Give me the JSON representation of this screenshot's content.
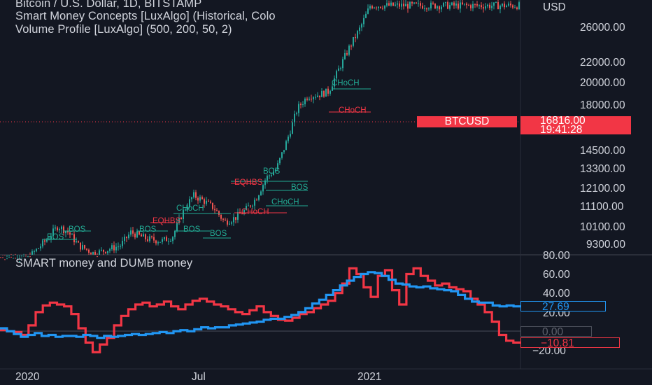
{
  "header": {
    "symbol_line": "Bitcoin / U.S. Dollar, 1D, BITSTAMP",
    "indicator_1": "Smart Money Concepts [LuxAlgo] (Historical, Colo",
    "indicator_2": "Volume Profile [LuxAlgo] (500, 200, 50, 2)",
    "pane2_title": "SMART money and DUMB money"
  },
  "price_pane": {
    "currency_label": "USD",
    "price_ticks": [
      "26000.00",
      "22000.00",
      "20000.00",
      "18000.00",
      "14500.00",
      "13300.00",
      "12100.00",
      "11100.00",
      "10100.00",
      "9300.00"
    ],
    "symbol_tag": "BTCUSD",
    "last_price": "16816.00",
    "countdown": "19:41:28",
    "tag_color": "#f23645",
    "smc_labels": [
      {
        "text": "CHoCH",
        "color": "#22ab94"
      },
      {
        "text": "CHoCH",
        "color": "#f23645"
      },
      {
        "text": "BOS",
        "color": "#22ab94"
      },
      {
        "text": "EQHBS",
        "color": "#f23645"
      },
      {
        "text": "BOS",
        "color": "#22ab94"
      },
      {
        "text": "CHoCH",
        "color": "#22ab94"
      },
      {
        "text": "CHoCH",
        "color": "#22ab94"
      },
      {
        "text": "CHoCH",
        "color": "#f23645"
      },
      {
        "text": "EQHBS",
        "color": "#f23645"
      },
      {
        "text": "BOS",
        "color": "#22ab94"
      },
      {
        "text": "BOS",
        "color": "#22ab94"
      },
      {
        "text": "BOS",
        "color": "#22ab94"
      },
      {
        "text": "BOS",
        "color": "#22ab94"
      },
      {
        "text": "BOS",
        "color": "#22ab94"
      }
    ]
  },
  "indicator_pane": {
    "ticks": [
      "80.00",
      "60.00",
      "40.00",
      "20.00",
      "0.00",
      "−20.00"
    ],
    "smart_value": "27.69",
    "dumb_value": "−10.81",
    "zero_value": "0.00",
    "smart_color": "#2196f3",
    "dumb_color": "#f23645"
  },
  "time_axis": {
    "labels": [
      "2020",
      "Jul",
      "2021"
    ]
  },
  "chart_data": [
    {
      "type": "line",
      "title": "Bitcoin / U.S. Dollar, 1D, BITSTAMP",
      "ylabel": "USD",
      "ylim": [
        8900,
        29000
      ],
      "x_labels": [
        "2020",
        "Jul",
        "2021"
      ],
      "series": [
        {
          "name": "BTCUSD",
          "points": [
            [
              0.0,
              8800
            ],
            [
              0.05,
              8700
            ],
            [
              0.09,
              9600
            ],
            [
              0.11,
              10200
            ],
            [
              0.13,
              9900
            ],
            [
              0.15,
              9300
            ],
            [
              0.18,
              8950
            ],
            [
              0.23,
              9300
            ],
            [
              0.25,
              9900
            ],
            [
              0.28,
              9600
            ],
            [
              0.31,
              9500
            ],
            [
              0.33,
              9700
            ],
            [
              0.35,
              10900
            ],
            [
              0.37,
              11800
            ],
            [
              0.39,
              11500
            ],
            [
              0.41,
              11100
            ],
            [
              0.43,
              10400
            ],
            [
              0.45,
              10600
            ],
            [
              0.47,
              11000
            ],
            [
              0.49,
              11600
            ],
            [
              0.51,
              12800
            ],
            [
              0.53,
              13400
            ],
            [
              0.55,
              15300
            ],
            [
              0.57,
              17800
            ],
            [
              0.59,
              18900
            ],
            [
              0.61,
              19000
            ],
            [
              0.63,
              19300
            ],
            [
              0.65,
              21500
            ],
            [
              0.67,
              23800
            ],
            [
              0.69,
              26000
            ],
            [
              0.71,
              29000
            ],
            [
              0.73,
              29000
            ]
          ]
        }
      ]
    },
    {
      "type": "line",
      "title": "SMART money and DUMB money",
      "ylim": [
        -25,
        80
      ],
      "x_labels": [
        "2020",
        "Jul",
        "2021"
      ],
      "series": [
        {
          "name": "",
          "values": [
            5,
            2,
            -1,
            -4,
            -2,
            0,
            -3,
            -2,
            -4,
            -3,
            -3,
            -4,
            -2,
            -3,
            -5,
            -3,
            -4,
            -3,
            -2,
            -1,
            -2,
            -1,
            0,
            1,
            0,
            2,
            3,
            2,
            4,
            6,
            5,
            6,
            6,
            8,
            9,
            10,
            11,
            12,
            14,
            15,
            15,
            17,
            19,
            22,
            26,
            31,
            35,
            40,
            45,
            50,
            55,
            59,
            62,
            64,
            63,
            60,
            56,
            52,
            51,
            49,
            48,
            49,
            47,
            46,
            45,
            44,
            40,
            36,
            33,
            32,
            32,
            29,
            28,
            29,
            28,
            28
          ],
          "last": 27.69
        },
        {
          "name": "",
          "values": [
            3,
            2,
            1,
            -2,
            8,
            22,
            29,
            32,
            30,
            28,
            20,
            5,
            -10,
            -20,
            -12,
            -5,
            8,
            18,
            25,
            30,
            32,
            28,
            30,
            33,
            28,
            25,
            30,
            34,
            36,
            33,
            30,
            28,
            25,
            22,
            20,
            24,
            28,
            22,
            18,
            14,
            13,
            16,
            20,
            22,
            26,
            30,
            34,
            42,
            52,
            68,
            62,
            48,
            38,
            60,
            66,
            45,
            30,
            62,
            68,
            60,
            55,
            50,
            52,
            48,
            46,
            44,
            36,
            30,
            22,
            12,
            -2,
            -8,
            -10,
            -11
          ],
          "last": -10.81
        }
      ]
    }
  ]
}
